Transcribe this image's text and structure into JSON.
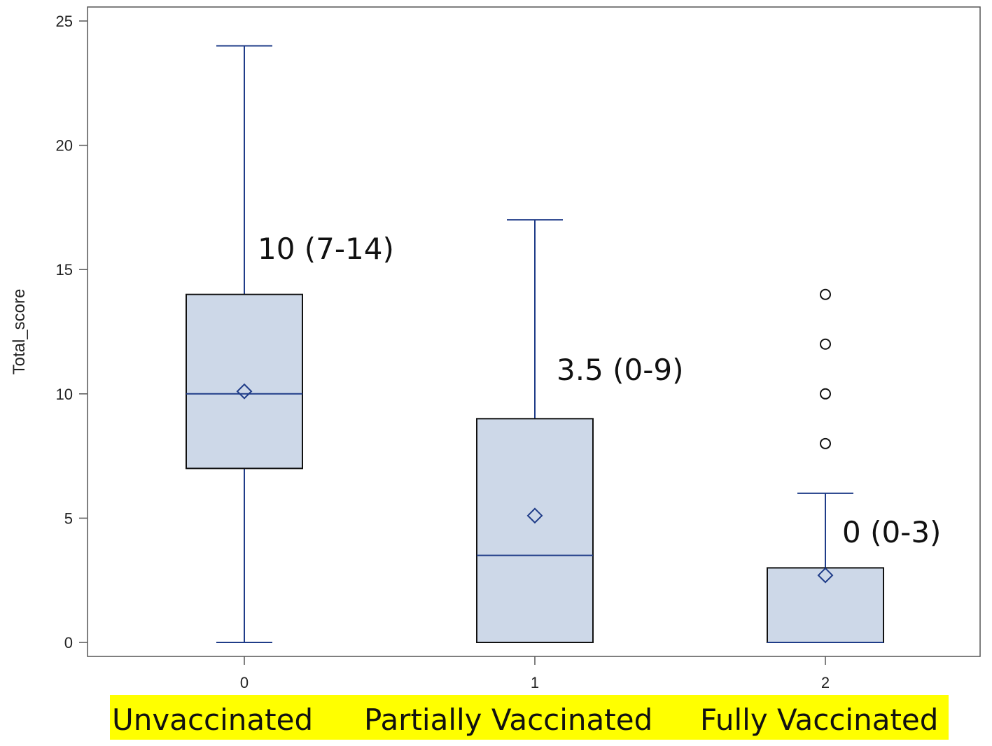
{
  "chart_data": {
    "type": "box",
    "ylabel": "Total_score",
    "ylim": [
      0,
      25
    ],
    "yticks": [
      0,
      5,
      10,
      15,
      20,
      25
    ],
    "categories": [
      "0",
      "1",
      "2"
    ],
    "group_labels": [
      "Unvaccinated",
      "Partially Vaccinated",
      "Fully Vaccinated"
    ],
    "boxes": [
      {
        "category": "0",
        "min": 0,
        "q1": 7,
        "median": 10,
        "q3": 14,
        "max": 24,
        "mean": 10.1,
        "outliers": [],
        "annotation": "10 (7-14)"
      },
      {
        "category": "1",
        "min": 0,
        "q1": 0,
        "median": 3.5,
        "q3": 9,
        "max": 17,
        "mean": 5.1,
        "outliers": [],
        "annotation": "3.5 (0-9)"
      },
      {
        "category": "2",
        "min": 0,
        "q1": 0,
        "median": 0,
        "q3": 3,
        "max": 6,
        "mean": 2.7,
        "outliers": [
          8,
          10,
          12,
          14
        ],
        "annotation": "0 (0-3)"
      }
    ],
    "grid": false,
    "colors": {
      "box_fill": "#cdd8e8",
      "box_stroke": "#111111",
      "whisker": "#1f3c88",
      "median": "#1f3c88",
      "mean_marker": "#1f3c88",
      "outlier": "#111111",
      "label_highlight": "#ffff00"
    }
  }
}
